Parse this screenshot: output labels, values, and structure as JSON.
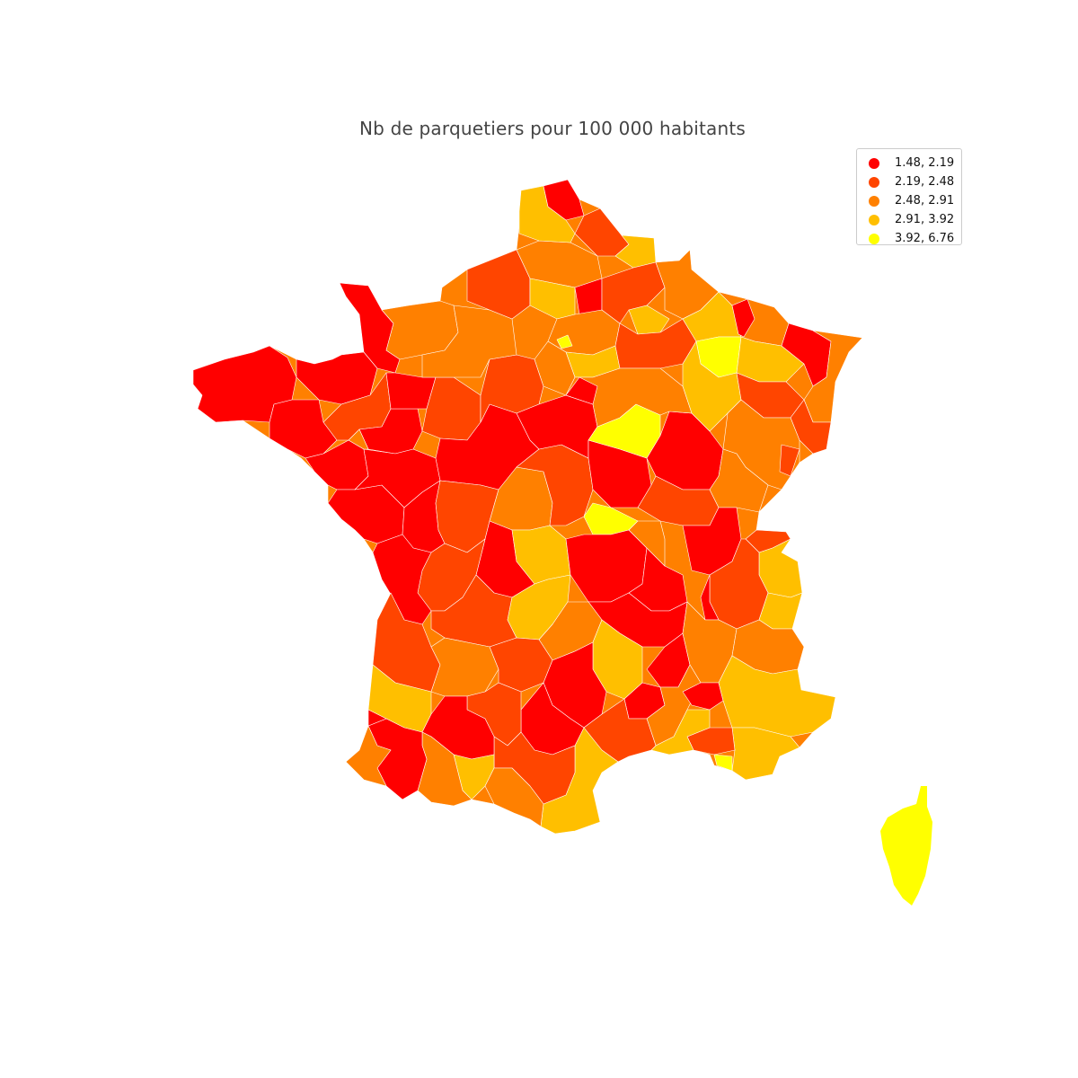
{
  "title": "Nb de parquetiers pour 100 000 habitants",
  "colors": {
    "c1": "#ff0000",
    "c2": "#ff4500",
    "c3": "#ff8000",
    "c4": "#ffbf00",
    "c5": "#ffff00"
  },
  "legend": [
    {
      "label": "1.48, 2.19",
      "color": "#ff0000"
    },
    {
      "label": "2.19, 2.48",
      "color": "#ff4500"
    },
    {
      "label": "2.48, 2.91",
      "color": "#ff8000"
    },
    {
      "label": "2.91, 3.92",
      "color": "#ffbf00"
    },
    {
      "label": "3.92, 6.76",
      "color": "#ffff00"
    }
  ]
}
